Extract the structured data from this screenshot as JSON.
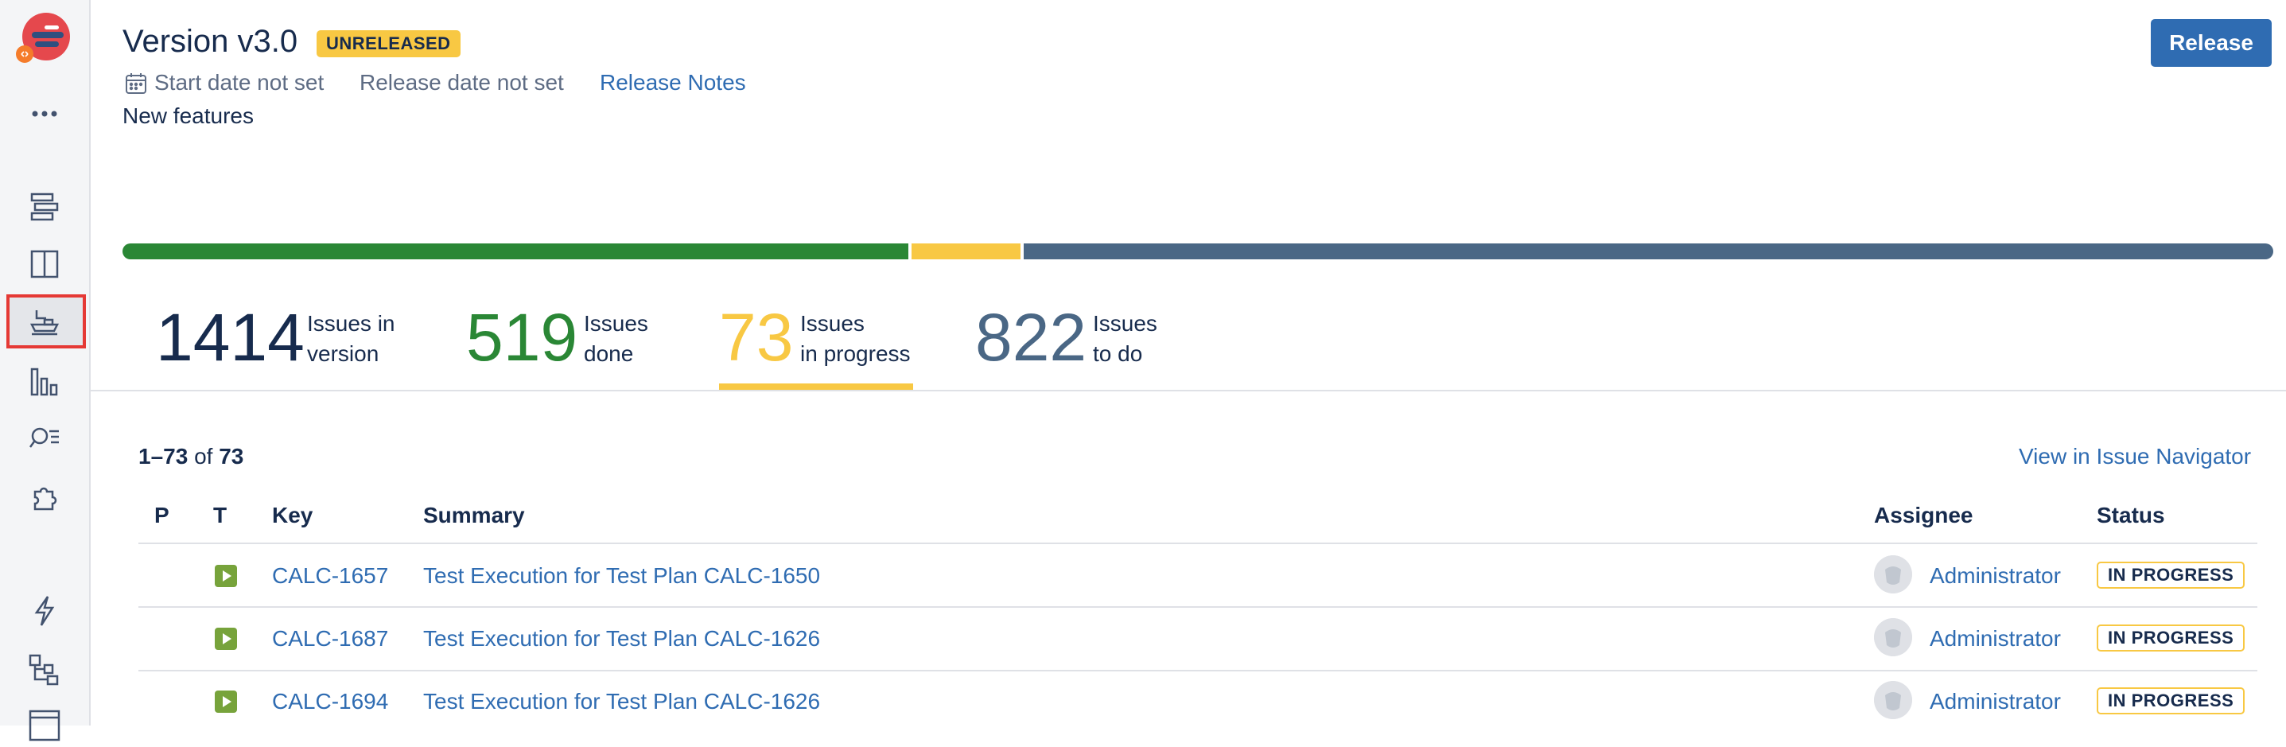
{
  "version": {
    "title": "Version v3.0",
    "badge": "UNRELEASED",
    "start_date": "Start date not set",
    "release_date": "Release date not set",
    "release_notes_label": "Release Notes",
    "description": "New features",
    "release_button": "Release"
  },
  "progress": {
    "done_fraction": 0.367,
    "in_progress_fraction": 0.052,
    "todo_fraction": 0.581,
    "colors": {
      "done": "#2a8735",
      "in_progress": "#f8c843",
      "todo": "#4a6785"
    }
  },
  "stats": [
    {
      "number": "1414",
      "label_line1": "Issues in",
      "label_line2": "version",
      "color": "#172b4d"
    },
    {
      "number": "519",
      "label_line1": "Issues",
      "label_line2": "done",
      "color": "#2a8735"
    },
    {
      "number": "73",
      "label_line1": "Issues",
      "label_line2": "in progress",
      "color": "#f8c843"
    },
    {
      "number": "822",
      "label_line1": "Issues",
      "label_line2": "to do",
      "color": "#4a6785"
    }
  ],
  "issues": {
    "range_start": "1",
    "range_end": "73",
    "of_label": "of",
    "total": "73",
    "navigator_link": "View in Issue Navigator",
    "columns": {
      "p": "P",
      "t": "T",
      "key": "Key",
      "summary": "Summary",
      "assignee": "Assignee",
      "status": "Status"
    },
    "rows": [
      {
        "key": "CALC-1657",
        "summary": "Test Execution for Test Plan CALC-1650",
        "assignee": "Administrator",
        "status": "IN PROGRESS",
        "type_icon": "test-execution-icon"
      },
      {
        "key": "CALC-1687",
        "summary": "Test Execution for Test Plan CALC-1626",
        "assignee": "Administrator",
        "status": "IN PROGRESS",
        "type_icon": "test-execution-icon"
      },
      {
        "key": "CALC-1694",
        "summary": "Test Execution for Test Plan CALC-1626",
        "assignee": "Administrator",
        "status": "IN PROGRESS",
        "type_icon": "test-execution-icon"
      }
    ]
  },
  "sidebar": {
    "icons": [
      "app-logo-icon",
      "more-icon",
      "backlog-icon",
      "board-icon",
      "releases-icon",
      "reports-icon",
      "issues-search-icon",
      "add-ons-icon",
      "automation-icon",
      "components-icon",
      "pages-icon"
    ],
    "selected": "releases-icon"
  }
}
